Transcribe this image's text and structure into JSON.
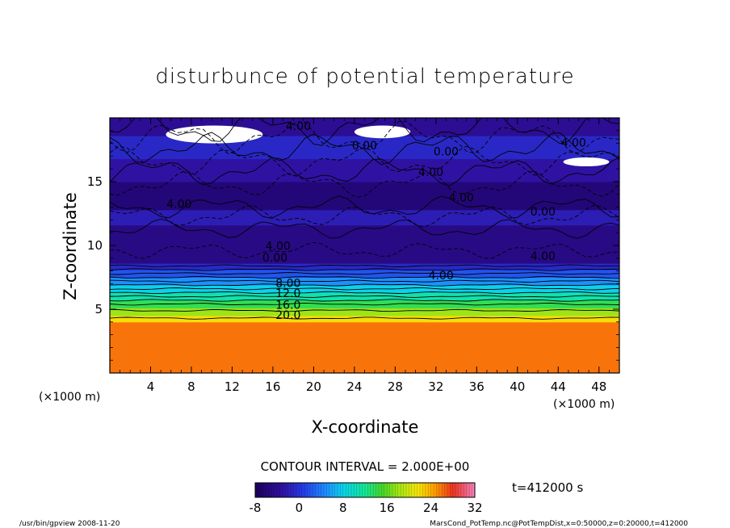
{
  "chart_data": {
    "type": "heatmap",
    "title": "disturbunce of potential temperature",
    "xlabel": "X-coordinate",
    "ylabel": "Z-coordinate",
    "x_unit": "(×1000 m)",
    "y_unit": "(×1000 m)",
    "xlim": [
      0,
      50
    ],
    "ylim": [
      0,
      20
    ],
    "x_ticks": [
      "4",
      "8",
      "12",
      "16",
      "20",
      "24",
      "28",
      "32",
      "36",
      "40",
      "44",
      "48"
    ],
    "x_tick_values": [
      4,
      8,
      12,
      16,
      20,
      24,
      28,
      32,
      36,
      40,
      44,
      48
    ],
    "y_ticks": [
      "5",
      "10",
      "15"
    ],
    "y_tick_values": [
      5,
      10,
      15
    ],
    "contour_interval_text": "CONTOUR INTERVAL = 2.000E+00",
    "time_text": "t=412000 s",
    "colorbar": {
      "range": [
        -8,
        32
      ],
      "tick_labels": [
        "-8",
        "0",
        "8",
        "16",
        "24",
        "32"
      ],
      "tick_values": [
        -8,
        0,
        8,
        16,
        24,
        32
      ]
    },
    "contour_labels": [
      {
        "text": "4.00",
        "x": 18.5,
        "z": 19.3
      },
      {
        "text": "0.00",
        "x": 25.0,
        "z": 17.8
      },
      {
        "text": "0.00",
        "x": 33.0,
        "z": 17.3
      },
      {
        "text": "4.00",
        "x": 45.5,
        "z": 18.0
      },
      {
        "text": "4.00",
        "x": 31.5,
        "z": 15.7
      },
      {
        "text": "4.00",
        "x": 34.5,
        "z": 13.7
      },
      {
        "text": "4.00",
        "x": 6.8,
        "z": 13.2
      },
      {
        "text": "0.00",
        "x": 42.5,
        "z": 12.6
      },
      {
        "text": "4.00",
        "x": 16.5,
        "z": 9.9
      },
      {
        "text": "0.00",
        "x": 16.2,
        "z": 9.0
      },
      {
        "text": "4.00",
        "x": 42.5,
        "z": 9.1
      },
      {
        "text": "4.00",
        "x": 32.5,
        "z": 7.6
      },
      {
        "text": "8.00",
        "x": 17.5,
        "z": 7.0
      },
      {
        "text": "12.0",
        "x": 17.5,
        "z": 6.2
      },
      {
        "text": "16.0",
        "x": 17.5,
        "z": 5.3
      },
      {
        "text": "20.0",
        "x": 17.5,
        "z": 4.5
      }
    ],
    "layers": [
      {
        "z": [
          0.0,
          4.0
        ],
        "value": 26
      },
      {
        "z": [
          4.0,
          4.5
        ],
        "value": 22
      },
      {
        "z": [
          4.5,
          5.1
        ],
        "value": 18
      },
      {
        "z": [
          5.1,
          5.7
        ],
        "value": 14
      },
      {
        "z": [
          5.7,
          6.3
        ],
        "value": 11
      },
      {
        "z": [
          6.3,
          6.9
        ],
        "value": 8
      },
      {
        "z": [
          6.9,
          7.5
        ],
        "value": 5
      },
      {
        "z": [
          7.5,
          8.1
        ],
        "value": 2
      },
      {
        "z": [
          8.1,
          8.6
        ],
        "value": -1
      },
      {
        "z": [
          8.6,
          11.6
        ],
        "value": -5
      },
      {
        "z": [
          11.6,
          12.8
        ],
        "value": -2
      },
      {
        "z": [
          12.8,
          15.0
        ],
        "value": -6
      },
      {
        "z": [
          15.0,
          16.8
        ],
        "value": -3
      },
      {
        "z": [
          16.8,
          18.6
        ],
        "value": -1
      },
      {
        "z": [
          18.6,
          20.0
        ],
        "value": -4
      }
    ]
  },
  "footer": {
    "left": "/usr/bin/gpview   2008-11-20",
    "right": "MarsCond_PotTemp.nc@PotTempDist,x=0:50000,z=0:20000,t=412000"
  }
}
